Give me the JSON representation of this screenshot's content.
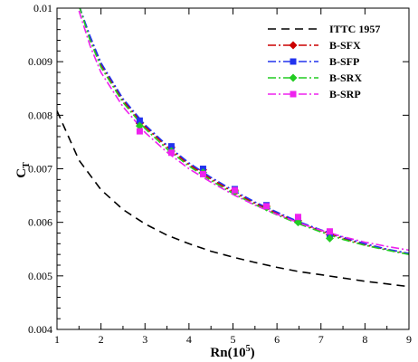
{
  "chart_data": {
    "type": "line",
    "title": "",
    "xlabel": {
      "main": "Rn(10",
      "sup": "5",
      "tail": ")"
    },
    "ylabel": {
      "main": "C",
      "sub": "T"
    },
    "xlim": [
      1,
      9
    ],
    "ylim": [
      0.004,
      0.01
    ],
    "xticks": [
      1,
      2,
      3,
      4,
      5,
      6,
      7,
      8,
      9
    ],
    "xtick_labels": [
      "1",
      "2",
      "3",
      "4",
      "5",
      "6",
      "7",
      "8",
      "9"
    ],
    "yticks": [
      0.004,
      0.005,
      0.006,
      0.007,
      0.008,
      0.009,
      0.01
    ],
    "ytick_labels": [
      "0.004",
      "0.005",
      "0.006",
      "0.007",
      "0.008",
      "0.009",
      "0.01"
    ],
    "grid": false,
    "legend_position": "top-right",
    "series": [
      {
        "name": "ITTC 1957",
        "color": "#000000",
        "dash": "dashed",
        "marker": "none",
        "x": [
          1.0,
          1.5,
          2.0,
          2.5,
          3.0,
          3.5,
          4.0,
          4.5,
          5.0,
          5.5,
          6.0,
          6.5,
          7.0,
          7.5,
          8.0,
          8.5,
          9.0
        ],
        "y": [
          0.00808,
          0.00716,
          0.00661,
          0.00624,
          0.00597,
          0.00576,
          0.0056,
          0.00546,
          0.00535,
          0.00525,
          0.00516,
          0.00508,
          0.00502,
          0.00496,
          0.0049,
          0.00485,
          0.0048
        ],
        "points_x": [],
        "points_y": []
      },
      {
        "name": "B-SFX",
        "color": "#cc0000",
        "dash": "dashdot",
        "marker": "diamond",
        "x": [
          1.5,
          1.75,
          2.0,
          2.5,
          3.0,
          3.5,
          4.0,
          4.5,
          5.0,
          5.5,
          6.0,
          6.5,
          7.0,
          7.5,
          8.0,
          8.5,
          9.0
        ],
        "y": [
          0.01005,
          0.00945,
          0.00895,
          0.00828,
          0.00779,
          0.00741,
          0.00708,
          0.00681,
          0.00657,
          0.00636,
          0.00617,
          0.00599,
          0.00584,
          0.0057,
          0.00558,
          0.00549,
          0.00541
        ],
        "points_x": [
          2.88,
          3.6,
          4.32,
          5.04,
          5.76,
          6.48,
          7.2
        ],
        "points_y": [
          0.00785,
          0.0074,
          0.00698,
          0.0066,
          0.0063,
          0.00603,
          0.00577
        ]
      },
      {
        "name": "B-SFP",
        "color": "#2233ee",
        "dash": "dashdot",
        "marker": "square",
        "x": [
          1.5,
          1.75,
          2.0,
          2.5,
          3.0,
          3.5,
          4.0,
          4.5,
          5.0,
          5.5,
          6.0,
          6.5,
          7.0,
          7.5,
          8.0,
          8.5,
          9.0
        ],
        "y": [
          0.01005,
          0.00948,
          0.00898,
          0.00831,
          0.00782,
          0.00744,
          0.00711,
          0.00684,
          0.0066,
          0.00638,
          0.00619,
          0.00601,
          0.00586,
          0.00572,
          0.0056,
          0.0055,
          0.00542
        ],
        "points_x": [
          2.88,
          3.6,
          4.32,
          5.04,
          5.76,
          6.48,
          7.2
        ],
        "points_y": [
          0.0079,
          0.00742,
          0.007,
          0.00662,
          0.00632,
          0.00604,
          0.00578
        ]
      },
      {
        "name": "B-SRX",
        "color": "#22cc22",
        "dash": "dashdot",
        "marker": "diamond",
        "x": [
          1.5,
          1.75,
          2.0,
          2.5,
          3.0,
          3.5,
          4.0,
          4.5,
          5.0,
          5.5,
          6.0,
          6.5,
          7.0,
          7.5,
          8.0,
          8.5,
          9.0
        ],
        "y": [
          0.01005,
          0.0094,
          0.0089,
          0.00824,
          0.00775,
          0.00737,
          0.00705,
          0.00678,
          0.00654,
          0.00633,
          0.00614,
          0.00597,
          0.00582,
          0.00568,
          0.00557,
          0.00548,
          0.0054
        ],
        "points_x": [
          2.88,
          3.6,
          4.32,
          5.04,
          5.76,
          6.48,
          7.2
        ],
        "points_y": [
          0.0078,
          0.00733,
          0.00693,
          0.00658,
          0.00628,
          0.006,
          0.0057
        ]
      },
      {
        "name": "B-SRP",
        "color": "#ee22ee",
        "dash": "dashdot",
        "marker": "square",
        "x": [
          1.5,
          1.75,
          2.0,
          2.5,
          3.0,
          3.5,
          4.0,
          4.5,
          5.0,
          5.5,
          6.0,
          6.5,
          7.0,
          7.5,
          8.0,
          8.5,
          9.0
        ],
        "y": [
          0.00995,
          0.0093,
          0.0088,
          0.00816,
          0.00768,
          0.00731,
          0.007,
          0.00675,
          0.00652,
          0.00632,
          0.00615,
          0.00599,
          0.00585,
          0.00573,
          0.00563,
          0.00555,
          0.00548
        ],
        "points_x": [
          2.88,
          3.6,
          4.32,
          5.04,
          5.76,
          6.48,
          7.2
        ],
        "points_y": [
          0.0077,
          0.0073,
          0.0069,
          0.0066,
          0.0063,
          0.0061,
          0.00583
        ]
      }
    ]
  }
}
